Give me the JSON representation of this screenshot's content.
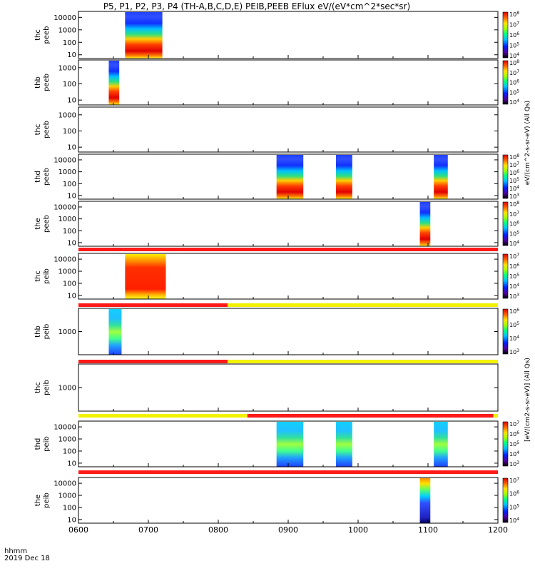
{
  "title": "P5, P1, P2, P3, P4 (TH-A,B,C,D,E) PEIB,PEEB EFlux eV/(eV*cm^2*sec*sr)",
  "footer": {
    "unit_label": "hhmm",
    "date_label": "2019 Dec 18"
  },
  "colors": {
    "frame": "#000000",
    "quality_red": "#ff1a1a",
    "quality_yellow": "#f2f200",
    "empty": "#ffffff"
  },
  "chart_data": {
    "type": "heatmap",
    "x_axis": {
      "range": [
        "0600",
        "1200"
      ],
      "ticks": [
        "0600",
        "0700",
        "0800",
        "0900",
        "1000",
        "1100",
        "1200"
      ]
    },
    "panels": [
      {
        "name": "thc-peeb",
        "label_top": "thc",
        "label_bottom": "peeb",
        "yticks": [
          "10",
          "100",
          "1000",
          "10000"
        ],
        "yrange": [
          5,
          30000
        ],
        "intervals": [
          [
            "0640",
            "0712"
          ]
        ],
        "colorbar": [
          "10^4",
          "10^5",
          "10^6",
          "10^7",
          "10^8"
        ]
      },
      {
        "name": "thb-peeb",
        "label_top": "thb",
        "label_bottom": "peeb",
        "yticks": [
          "10",
          "100",
          "1000"
        ],
        "yrange": [
          5,
          3000
        ],
        "intervals": [
          [
            "0626",
            "0635"
          ]
        ],
        "colorbar": [
          "10^4",
          "10^5",
          "10^6",
          "10^7",
          "10^8"
        ]
      },
      {
        "name": "thc-peeb-2",
        "label_top": "thc",
        "label_bottom": "peeb",
        "yticks": [
          "10",
          "100",
          "1000"
        ],
        "yrange": [
          5,
          3000
        ],
        "intervals": [],
        "colorbar": []
      },
      {
        "name": "thd-peeb",
        "label_top": "thd",
        "label_bottom": "peeb",
        "yticks": [
          "10",
          "100",
          "1000",
          "10000"
        ],
        "yrange": [
          5,
          30000
        ],
        "intervals": [
          [
            "0850",
            "0913"
          ],
          [
            "0941",
            "0955"
          ],
          [
            "1105",
            "1117"
          ]
        ],
        "colorbar": [
          "10^3",
          "10^4",
          "10^5",
          "10^6",
          "10^7",
          "10^8"
        ]
      },
      {
        "name": "the-peeb",
        "label_top": "the",
        "label_bottom": "peeb",
        "yticks": [
          "10",
          "100",
          "1000",
          "10000"
        ],
        "yrange": [
          5,
          30000
        ],
        "intervals": [
          [
            "1053",
            "1102"
          ]
        ],
        "colorbar": [
          "10^4",
          "10^5",
          "10^6",
          "10^7",
          "10^8"
        ]
      },
      {
        "name": "thc-peib",
        "label_top": "thc",
        "label_bottom": "peib",
        "yticks": [
          "10",
          "100",
          "1000",
          "10000"
        ],
        "yrange": [
          5,
          30000
        ],
        "intervals": [
          [
            "0640",
            "0715"
          ]
        ],
        "colorbar": [
          "10^3",
          "10^4",
          "10^5",
          "10^6",
          "10^7"
        ]
      },
      {
        "name": "thb-peib",
        "label_top": "thb",
        "label_bottom": "peib",
        "yticks": [
          "1000"
        ],
        "yrange": [
          100,
          10000
        ],
        "intervals": [
          [
            "0626",
            "0637"
          ]
        ],
        "colorbar": [
          "10^3",
          "10^4",
          "10^5",
          "10^6"
        ]
      },
      {
        "name": "thc-peib-2",
        "label_top": "thc",
        "label_bottom": "peib",
        "yticks": [
          "1000"
        ],
        "yrange": [
          100,
          10000
        ],
        "intervals": [],
        "colorbar": []
      },
      {
        "name": "thd-peib",
        "label_top": "thd",
        "label_bottom": "peib",
        "yticks": [
          "10",
          "100",
          "1000",
          "10000"
        ],
        "yrange": [
          5,
          30000
        ],
        "intervals": [
          [
            "0850",
            "0913"
          ],
          [
            "0941",
            "0955"
          ],
          [
            "1105",
            "1117"
          ]
        ],
        "colorbar": [
          "10^3",
          "10^4",
          "10^5",
          "10^6",
          "10^7"
        ]
      },
      {
        "name": "the-peib",
        "label_top": "the",
        "label_bottom": "peib",
        "yticks": [
          "10",
          "100",
          "1000",
          "10000"
        ],
        "yrange": [
          5,
          30000
        ],
        "intervals": [
          [
            "1053",
            "1102"
          ]
        ],
        "colorbar": [
          "10^4",
          "10^5",
          "10^6",
          "10^7"
        ]
      }
    ],
    "quality_bars": [
      {
        "after_panel": 4,
        "segments": [
          {
            "color": "red",
            "start": "0600",
            "end": "1200"
          }
        ]
      },
      {
        "after_panel": 5,
        "segments": [
          {
            "color": "red",
            "start": "0600",
            "end": "0808"
          },
          {
            "color": "yellow",
            "start": "0808",
            "end": "1200"
          }
        ]
      },
      {
        "after_panel": 6,
        "segments": [
          {
            "color": "red",
            "start": "0600",
            "end": "0808"
          },
          {
            "color": "yellow",
            "start": "0808",
            "end": "1200"
          }
        ]
      },
      {
        "after_panel": 7,
        "segments": [
          {
            "color": "yellow",
            "start": "0600",
            "end": "0825"
          },
          {
            "color": "red",
            "start": "0825",
            "end": "1156"
          },
          {
            "color": "yellow",
            "start": "1156",
            "end": "1200"
          }
        ]
      },
      {
        "after_panel": 8,
        "segments": [
          {
            "color": "red",
            "start": "0600",
            "end": "1200"
          }
        ]
      }
    ],
    "colorbar_titles": [
      "eV/(cm^2-s-sr-eV) (All Qs)",
      "[eV/(cm2-s-sr-eV)] (All Qs)"
    ]
  }
}
